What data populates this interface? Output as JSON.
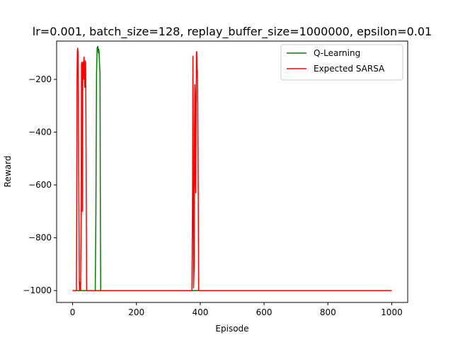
{
  "chart_data": {
    "type": "line",
    "title": "lr=0.001, batch_size=128, replay_buffer_size=1000000, epsilon=0.01",
    "xlabel": "Episode",
    "ylabel": "Reward",
    "xlim": [
      -50,
      1050
    ],
    "ylim": [
      -1045,
      -55
    ],
    "xticks": [
      0,
      200,
      400,
      600,
      800,
      1000
    ],
    "xtick_labels": [
      "0",
      "200",
      "400",
      "600",
      "800",
      "1000"
    ],
    "yticks": [
      -1000,
      -800,
      -600,
      -400,
      -200
    ],
    "ytick_labels": [
      "−1000",
      "−800",
      "−600",
      "−400",
      "−200"
    ],
    "grid": false,
    "legend_position": "upper-right",
    "series": [
      {
        "name": "Q-Learning",
        "color": "#008000",
        "points": [
          [
            0,
            -1000
          ],
          [
            71,
            -1000
          ],
          [
            73,
            -720
          ],
          [
            75,
            -180
          ],
          [
            77,
            -80
          ],
          [
            79,
            -75
          ],
          [
            81,
            -100
          ],
          [
            82,
            -85
          ],
          [
            83,
            -95
          ],
          [
            84,
            -130
          ],
          [
            86,
            -180
          ],
          [
            87,
            -700
          ],
          [
            88,
            -1000
          ],
          [
            1000,
            -1000
          ]
        ]
      },
      {
        "name": "Expected SARSA",
        "color": "#ff0000",
        "points": [
          [
            0,
            -1000
          ],
          [
            12,
            -1000
          ],
          [
            13,
            -700
          ],
          [
            14,
            -200
          ],
          [
            15,
            -90
          ],
          [
            16,
            -82
          ],
          [
            17,
            -100
          ],
          [
            18,
            -250
          ],
          [
            20,
            -700
          ],
          [
            21,
            -970
          ],
          [
            22,
            -1000
          ],
          [
            23,
            -970
          ],
          [
            25,
            -1000
          ],
          [
            27,
            -720
          ],
          [
            28,
            -140
          ],
          [
            29,
            -135
          ],
          [
            30,
            -250
          ],
          [
            31,
            -700
          ],
          [
            32,
            -140
          ],
          [
            33,
            -135
          ],
          [
            34,
            -200
          ],
          [
            35,
            -130
          ],
          [
            36,
            -115
          ],
          [
            37,
            -160
          ],
          [
            38,
            -230
          ],
          [
            39,
            -165
          ],
          [
            40,
            -130
          ],
          [
            41,
            -140
          ],
          [
            42,
            -400
          ],
          [
            43,
            -700
          ],
          [
            44,
            -1000
          ],
          [
            374,
            -1000
          ],
          [
            376,
            -600
          ],
          [
            377,
            -112
          ],
          [
            378,
            -400
          ],
          [
            379,
            -990
          ],
          [
            381,
            -900
          ],
          [
            382,
            -400
          ],
          [
            383,
            -220
          ],
          [
            384,
            -250
          ],
          [
            385,
            -600
          ],
          [
            386,
            -630
          ],
          [
            387,
            -400
          ],
          [
            388,
            -100
          ],
          [
            389,
            -95
          ],
          [
            390,
            -160
          ],
          [
            391,
            -170
          ],
          [
            392,
            -250
          ],
          [
            394,
            -700
          ],
          [
            395,
            -1000
          ],
          [
            1000,
            -1000
          ]
        ]
      }
    ]
  }
}
